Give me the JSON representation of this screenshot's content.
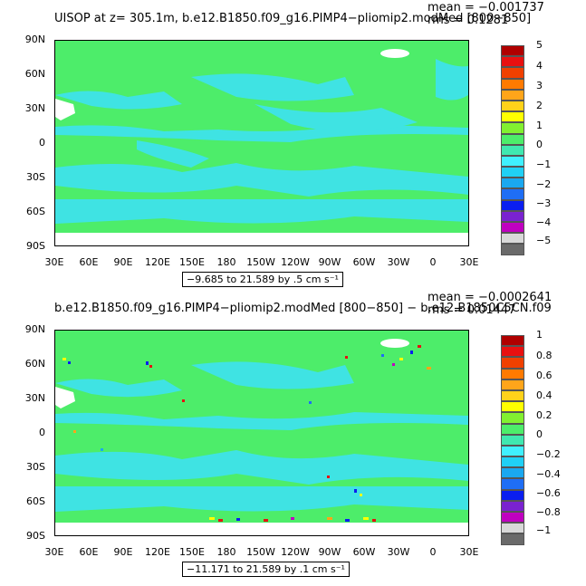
{
  "colors": {
    "land_missing": "#ffffff",
    "ocean_zero": "#4ded6a",
    "ocean_low": "#3fe3e3",
    "colorbar": [
      "#6a6a6a",
      "#d8d8d8",
      "#c000c0",
      "#7a22d0",
      "#0a1ef0",
      "#1f6ef5",
      "#1aa8f0",
      "#20d0f5",
      "#40f0ff",
      "#40e8b0",
      "#4ded6a",
      "#82f030",
      "#ffff00",
      "#ffd21a",
      "#ffa51a",
      "#ff7a00",
      "#f04000",
      "#e81010",
      "#b00000"
    ]
  },
  "panels": [
    {
      "title": "UISOP at z= 305.1m, b.e12.B1850.f09_g16.PIMP4−pliomip2.modMed [800−850]",
      "mean": "mean = −0.001737",
      "rms": "rms = 0.1281",
      "range": "−9.685 to 21.589 by .5 cm s⁻¹",
      "colorbar_labels": [
        "5",
        "4",
        "3",
        "2",
        "1",
        "0",
        "−1",
        "−2",
        "−3",
        "−4",
        "−5"
      ]
    },
    {
      "title": "b.e12.B1850.f09_g16.PIMP4−pliomip2.modMed [800−850] − b.e12.B1850C5CN.f09",
      "mean": "mean = −0.0002641",
      "rms": "rms = 0.01447",
      "range": "−11.171 to 21.589 by .1 cm s⁻¹",
      "colorbar_labels": [
        "1",
        "0.8",
        "0.6",
        "0.4",
        "0.2",
        "0",
        "−0.2",
        "−0.4",
        "−0.6",
        "−0.8",
        "−1"
      ]
    }
  ],
  "lat_ticks": [
    "90N",
    "60N",
    "30N",
    "0",
    "30S",
    "60S",
    "90S"
  ],
  "lon_ticks": [
    "30E",
    "60E",
    "90E",
    "120E",
    "150E",
    "180",
    "150W",
    "120W",
    "90W",
    "60W",
    "30W",
    "0",
    "30E"
  ]
}
